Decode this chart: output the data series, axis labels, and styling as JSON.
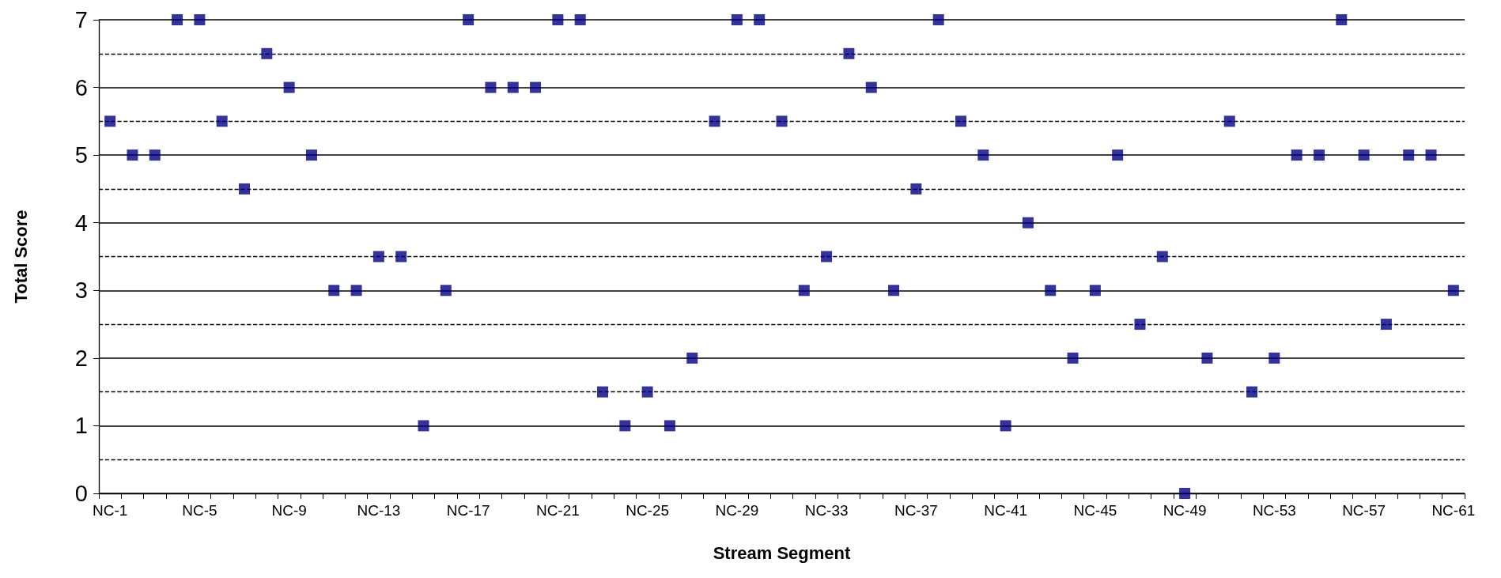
{
  "chart_data": {
    "type": "scatter",
    "xlabel": "Stream Segment",
    "ylabel": "Total Score",
    "categories": [
      "NC-1",
      null,
      null,
      null,
      "NC-5",
      null,
      null,
      null,
      "NC-9",
      null,
      null,
      null,
      "NC-13",
      null,
      null,
      null,
      "NC-17",
      null,
      null,
      null,
      "NC-21",
      null,
      null,
      null,
      "NC-25",
      null,
      null,
      null,
      "NC-29",
      null,
      null,
      null,
      "NC-33",
      null,
      null,
      null,
      "NC-37",
      null,
      null,
      null,
      "NC-41",
      null,
      null,
      null,
      "NC-45",
      null,
      null,
      null,
      "NC-49",
      null,
      null,
      null,
      "NC-53",
      null,
      null,
      null,
      "NC-57",
      null,
      null,
      null,
      "NC-61"
    ],
    "series": [
      {
        "color": "#000080",
        "values": [
          5.5,
          5,
          5,
          7,
          7,
          5.5,
          4.5,
          6.5,
          6,
          5,
          3,
          3,
          3.5,
          3.5,
          1,
          3,
          7,
          6,
          6,
          6,
          7,
          7,
          1.5,
          1,
          1.5,
          1,
          2,
          5.5,
          7,
          7,
          5.5,
          3,
          3.5,
          6.5,
          6,
          3,
          4.5,
          7,
          5.5,
          5,
          1,
          4,
          3,
          2,
          3,
          5,
          2.5,
          3.5,
          0,
          2,
          5.5,
          1.5,
          2,
          5,
          5,
          7,
          5,
          2.5,
          5,
          5,
          3
        ]
      }
    ],
    "ylim": [
      0,
      7
    ],
    "yticks": [
      0,
      1,
      2,
      3,
      4,
      5,
      6,
      7
    ],
    "grid": "y",
    "marker": "square",
    "ref_lines": [
      {
        "axis": "y",
        "value": 0.5,
        "color": "#000000",
        "line_style": "dashed"
      },
      {
        "axis": "y",
        "value": 1.5,
        "color": "#000000",
        "line_style": "dashed"
      },
      {
        "axis": "y",
        "value": 2.5,
        "color": "#000000",
        "line_style": "dashed"
      },
      {
        "axis": "y",
        "value": 3.5,
        "color": "#000000",
        "line_style": "dashed"
      },
      {
        "axis": "y",
        "value": 4.5,
        "color": "#000000",
        "line_style": "dashed"
      },
      {
        "axis": "y",
        "value": 5.5,
        "color": "#000000",
        "line_style": "dashed"
      },
      {
        "axis": "y",
        "value": 6.5,
        "color": "#000000",
        "line_style": "dashed"
      }
    ]
  }
}
